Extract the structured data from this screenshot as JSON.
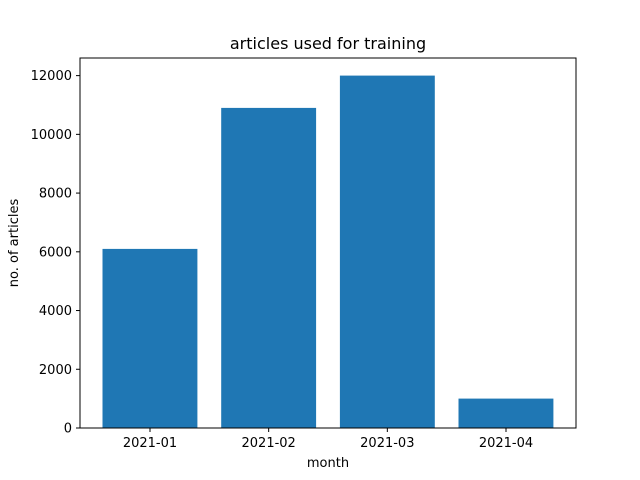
{
  "chart_data": {
    "type": "bar",
    "title": "articles used for training",
    "xlabel": "month",
    "ylabel": "no. of articles",
    "categories": [
      "2021-01",
      "2021-02",
      "2021-03",
      "2021-04"
    ],
    "values": [
      6100,
      10900,
      12000,
      1000
    ],
    "ylim": [
      0,
      12600
    ],
    "yticks": [
      0,
      2000,
      4000,
      6000,
      8000,
      10000,
      12000
    ],
    "bar_color": "#1f77b4",
    "grid": false,
    "legend": "none"
  }
}
